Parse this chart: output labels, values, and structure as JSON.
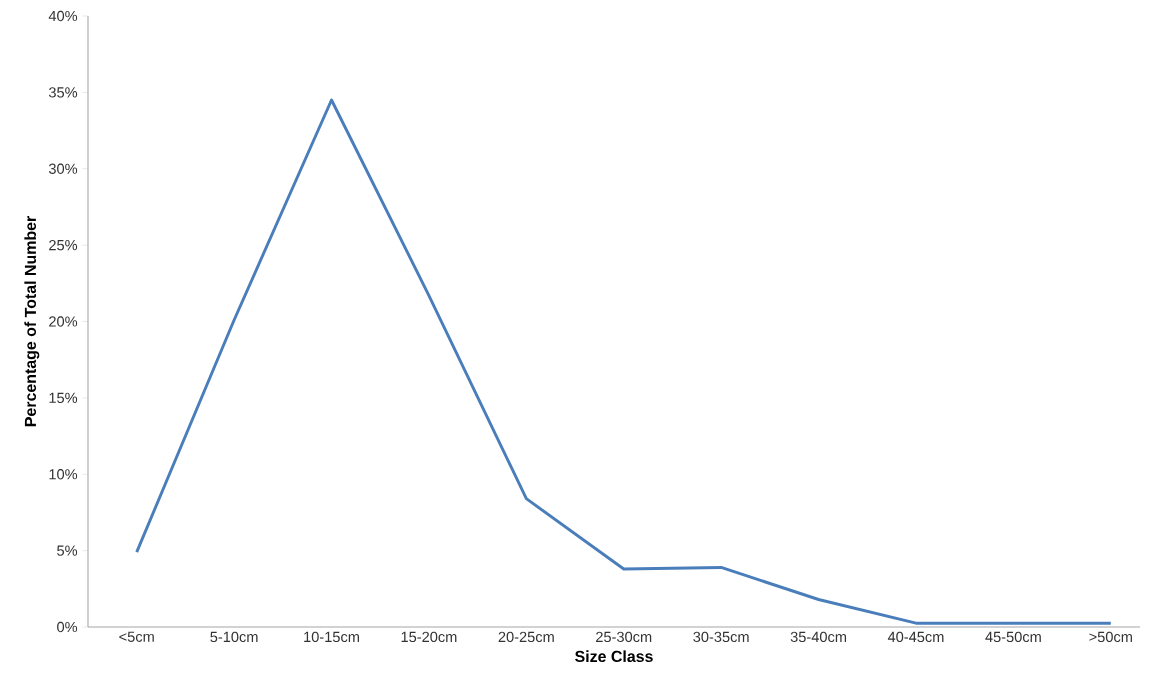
{
  "chart_data": {
    "type": "line",
    "xlabel": "Size Class",
    "ylabel": "Percentage of Total Number",
    "categories": [
      "<5cm",
      "5-10cm",
      "10-15cm",
      "15-20cm",
      "20-25cm",
      "25-30cm",
      "30-35cm",
      "35-40cm",
      "40-45cm",
      "45-50cm",
      ">50cm"
    ],
    "series": [
      {
        "color": "#4a7ebb",
        "values": [
          4.9,
          20.1,
          34.5,
          21.7,
          8.4,
          3.8,
          3.9,
          1.8,
          0.25,
          0.25,
          0.25
        ]
      }
    ],
    "ylim": [
      0,
      40
    ],
    "yticks": [
      {
        "value": 0,
        "label": "0%"
      },
      {
        "value": 5,
        "label": "5%"
      },
      {
        "value": 10,
        "label": "10%"
      },
      {
        "value": 15,
        "label": "15%"
      },
      {
        "value": 20,
        "label": "20%"
      },
      {
        "value": 25,
        "label": "25%"
      },
      {
        "value": 30,
        "label": "30%"
      },
      {
        "value": 35,
        "label": "35%"
      },
      {
        "value": 40,
        "label": "40%"
      }
    ],
    "grid": false,
    "marker": "none",
    "line_style": "solid"
  }
}
